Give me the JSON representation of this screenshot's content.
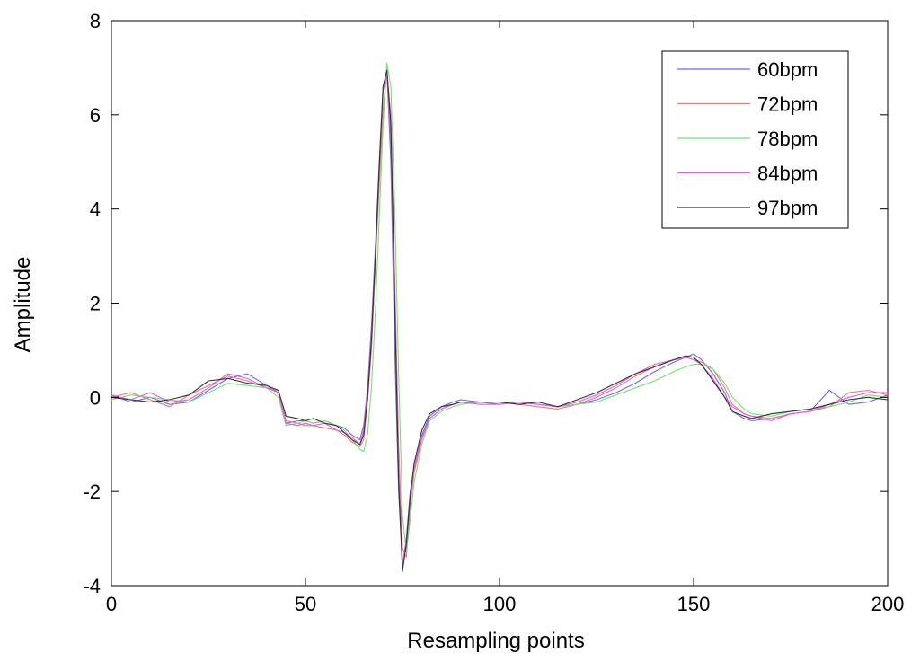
{
  "chart_data": {
    "type": "line",
    "xlabel": "Resampling points",
    "ylabel": "Amplitude",
    "xlim": [
      0,
      200
    ],
    "ylim": [
      -4,
      8
    ],
    "xticks": [
      0,
      50,
      100,
      150,
      200
    ],
    "yticks": [
      -4,
      -2,
      0,
      2,
      4,
      6,
      8
    ],
    "grid": false,
    "legend_position": "top-right",
    "series": [
      {
        "name": "60bpm",
        "color": "#6a6af2",
        "x": [
          0,
          5,
          10,
          15,
          20,
          25,
          30,
          35,
          40,
          43,
          45,
          48,
          50,
          52,
          55,
          58,
          60,
          62,
          64,
          65,
          66,
          67,
          68,
          69,
          70,
          71,
          72,
          73,
          74,
          75,
          76,
          77,
          78,
          80,
          82,
          85,
          88,
          90,
          95,
          100,
          105,
          110,
          115,
          120,
          125,
          130,
          135,
          140,
          145,
          148,
          150,
          152,
          155,
          158,
          160,
          163,
          165,
          170,
          175,
          180,
          185,
          190,
          195,
          200
        ],
        "y": [
          0.05,
          -0.1,
          0.0,
          -0.15,
          -0.1,
          0.15,
          0.4,
          0.5,
          0.25,
          0.1,
          -0.55,
          -0.5,
          -0.5,
          -0.55,
          -0.5,
          -0.6,
          -0.65,
          -0.8,
          -0.9,
          -0.6,
          0.2,
          1.5,
          3.2,
          5.0,
          6.6,
          6.9,
          5.0,
          1.0,
          -2.0,
          -3.6,
          -3.0,
          -2.0,
          -1.5,
          -0.8,
          -0.4,
          -0.2,
          -0.1,
          -0.05,
          -0.1,
          -0.15,
          -0.1,
          -0.15,
          -0.2,
          -0.15,
          -0.05,
          0.1,
          0.3,
          0.55,
          0.75,
          0.85,
          0.92,
          0.8,
          0.5,
          0.1,
          -0.3,
          -0.45,
          -0.5,
          -0.45,
          -0.35,
          -0.3,
          0.15,
          -0.15,
          -0.1,
          0.05
        ]
      },
      {
        "name": "72bpm",
        "color": "#ef7777",
        "x": [
          0,
          5,
          10,
          15,
          20,
          25,
          30,
          35,
          40,
          43,
          45,
          48,
          50,
          52,
          55,
          58,
          60,
          62,
          64,
          65,
          66,
          67,
          68,
          69,
          70,
          71,
          72,
          73,
          74,
          75,
          76,
          77,
          78,
          80,
          82,
          85,
          88,
          90,
          95,
          100,
          105,
          110,
          115,
          120,
          125,
          130,
          135,
          140,
          145,
          148,
          150,
          152,
          155,
          158,
          160,
          163,
          165,
          170,
          175,
          180,
          185,
          190,
          195,
          200
        ],
        "y": [
          0.0,
          0.1,
          -0.05,
          -0.2,
          0.05,
          0.25,
          0.45,
          0.35,
          0.2,
          0.15,
          -0.5,
          -0.55,
          -0.6,
          -0.6,
          -0.65,
          -0.7,
          -0.8,
          -0.95,
          -1.05,
          -0.9,
          -0.1,
          1.0,
          2.8,
          4.5,
          6.1,
          6.9,
          6.0,
          2.5,
          -1.0,
          -3.2,
          -3.4,
          -2.3,
          -1.6,
          -0.9,
          -0.45,
          -0.25,
          -0.15,
          -0.1,
          -0.1,
          -0.1,
          -0.15,
          -0.2,
          -0.25,
          -0.15,
          0.0,
          0.2,
          0.45,
          0.65,
          0.8,
          0.85,
          0.8,
          0.75,
          0.6,
          0.2,
          -0.15,
          -0.35,
          -0.4,
          -0.45,
          -0.35,
          -0.3,
          -0.2,
          0.1,
          0.15,
          0.05
        ]
      },
      {
        "name": "78bpm",
        "color": "#6ee66e",
        "x": [
          0,
          5,
          10,
          15,
          20,
          25,
          30,
          35,
          40,
          43,
          45,
          48,
          50,
          52,
          55,
          58,
          60,
          62,
          64,
          65,
          66,
          67,
          68,
          69,
          70,
          71,
          72,
          73,
          74,
          75,
          76,
          77,
          78,
          80,
          82,
          85,
          88,
          90,
          95,
          100,
          105,
          110,
          115,
          120,
          125,
          130,
          135,
          140,
          145,
          148,
          150,
          152,
          155,
          158,
          160,
          163,
          165,
          170,
          175,
          180,
          185,
          190,
          195,
          200
        ],
        "y": [
          -0.05,
          0.05,
          0.0,
          -0.05,
          -0.1,
          0.1,
          0.3,
          0.25,
          0.2,
          0.0,
          -0.6,
          -0.55,
          -0.5,
          -0.55,
          -0.5,
          -0.6,
          -0.7,
          -0.9,
          -1.1,
          -1.15,
          -0.8,
          0.2,
          1.8,
          3.8,
          5.8,
          7.1,
          6.6,
          4.0,
          0.5,
          -2.5,
          -3.3,
          -2.6,
          -1.8,
          -1.0,
          -0.5,
          -0.3,
          -0.2,
          -0.15,
          -0.1,
          -0.1,
          -0.1,
          -0.15,
          -0.2,
          -0.15,
          -0.1,
          0.05,
          0.2,
          0.35,
          0.55,
          0.65,
          0.7,
          0.7,
          0.6,
          0.3,
          0.0,
          -0.25,
          -0.35,
          -0.4,
          -0.3,
          -0.25,
          -0.2,
          -0.1,
          0.05,
          0.0
        ]
      },
      {
        "name": "84bpm",
        "color": "#ee55ee",
        "x": [
          0,
          5,
          10,
          15,
          20,
          25,
          30,
          35,
          40,
          43,
          45,
          48,
          50,
          52,
          55,
          58,
          60,
          62,
          64,
          65,
          66,
          67,
          68,
          69,
          70,
          71,
          72,
          73,
          74,
          75,
          76,
          77,
          78,
          80,
          82,
          85,
          88,
          90,
          95,
          100,
          105,
          110,
          115,
          120,
          125,
          130,
          135,
          140,
          145,
          148,
          150,
          152,
          155,
          158,
          160,
          163,
          165,
          170,
          175,
          180,
          185,
          190,
          195,
          200
        ],
        "y": [
          0.05,
          -0.05,
          0.1,
          -0.1,
          -0.05,
          0.2,
          0.5,
          0.4,
          0.2,
          0.1,
          -0.55,
          -0.6,
          -0.55,
          -0.6,
          -0.55,
          -0.7,
          -0.75,
          -0.85,
          -1.0,
          -0.7,
          0.1,
          1.3,
          3.0,
          4.8,
          6.5,
          6.85,
          5.5,
          1.8,
          -1.5,
          -3.5,
          -3.2,
          -2.2,
          -1.5,
          -0.85,
          -0.45,
          -0.25,
          -0.15,
          -0.1,
          -0.15,
          -0.15,
          -0.1,
          -0.15,
          -0.2,
          -0.1,
          0.05,
          0.25,
          0.5,
          0.7,
          0.8,
          0.85,
          0.8,
          0.7,
          0.4,
          0.0,
          -0.2,
          -0.35,
          -0.4,
          -0.5,
          -0.35,
          -0.3,
          -0.15,
          0.0,
          0.1,
          0.1
        ]
      },
      {
        "name": "97bpm",
        "color": "#333333",
        "x": [
          0,
          5,
          10,
          15,
          20,
          25,
          30,
          35,
          40,
          43,
          45,
          48,
          50,
          52,
          55,
          58,
          60,
          62,
          64,
          65,
          66,
          67,
          68,
          69,
          70,
          71,
          72,
          73,
          74,
          75,
          76,
          77,
          78,
          80,
          82,
          85,
          88,
          90,
          95,
          100,
          105,
          110,
          115,
          120,
          125,
          130,
          135,
          140,
          145,
          148,
          150,
          152,
          155,
          158,
          160,
          163,
          165,
          170,
          175,
          180,
          185,
          190,
          195,
          200
        ],
        "y": [
          0.0,
          -0.05,
          -0.1,
          -0.05,
          0.05,
          0.35,
          0.4,
          0.3,
          0.25,
          0.15,
          -0.4,
          -0.45,
          -0.5,
          -0.45,
          -0.55,
          -0.6,
          -0.75,
          -0.9,
          -1.0,
          -0.8,
          0.0,
          1.2,
          3.0,
          4.9,
          6.6,
          6.95,
          5.8,
          2.0,
          -1.8,
          -3.7,
          -3.1,
          -2.1,
          -1.4,
          -0.7,
          -0.35,
          -0.2,
          -0.15,
          -0.1,
          -0.1,
          -0.1,
          -0.15,
          -0.1,
          -0.2,
          -0.05,
          0.1,
          0.3,
          0.5,
          0.65,
          0.8,
          0.88,
          0.85,
          0.7,
          0.35,
          0.0,
          -0.3,
          -0.4,
          -0.45,
          -0.35,
          -0.3,
          -0.25,
          -0.15,
          -0.05,
          0.0,
          -0.05
        ]
      }
    ]
  }
}
